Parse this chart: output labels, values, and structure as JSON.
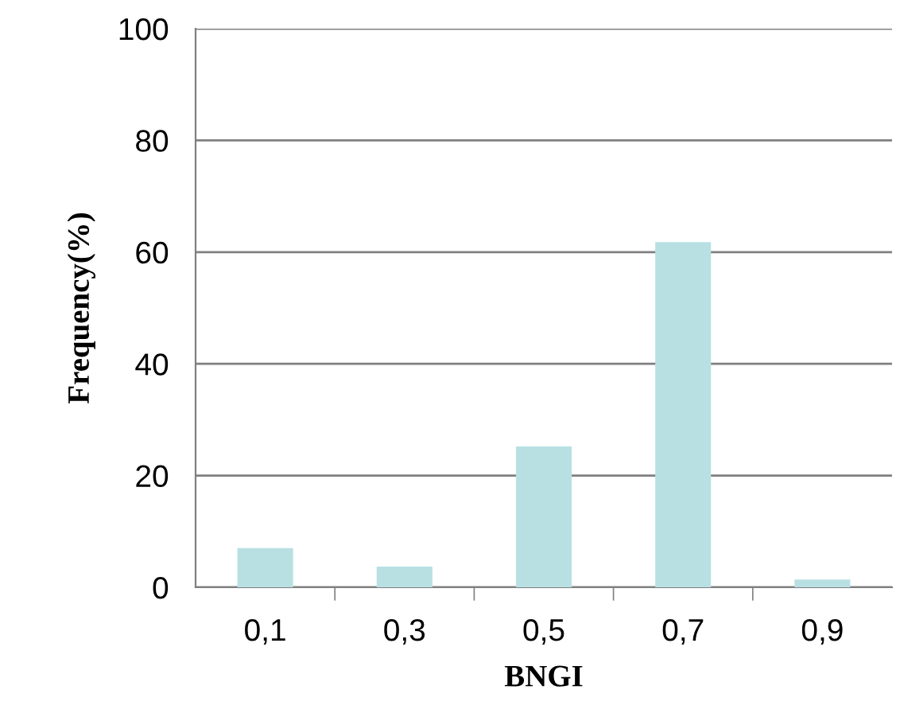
{
  "chart_data": {
    "type": "bar",
    "xlabel": "BNGI",
    "ylabel": "Frequency(%)",
    "categories": [
      "0,1",
      "0,3",
      "0,5",
      "0,7",
      "0,9"
    ],
    "values": [
      7.0,
      3.7,
      25.2,
      61.8,
      1.4
    ],
    "color": "#b8e0e3",
    "ylim": [
      0,
      100
    ],
    "yticks": [
      0,
      20,
      40,
      60,
      80,
      100
    ],
    "grid": "y"
  }
}
